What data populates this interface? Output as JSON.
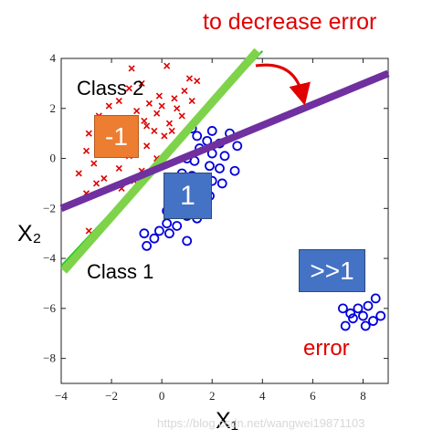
{
  "chart_data": {
    "type": "scatter",
    "title": "",
    "xlabel": "X₁",
    "ylabel": "X₂",
    "xlim": [
      -4,
      9
    ],
    "ylim": [
      -9,
      4
    ],
    "xticks": [
      "−4",
      "−2",
      "0",
      "2",
      "4",
      "6",
      "8"
    ],
    "xtick_values": [
      -4,
      -2,
      0,
      2,
      4,
      6,
      8
    ],
    "yticks": [
      "4",
      "2",
      "0",
      "−2",
      "−4",
      "−6",
      "−8"
    ],
    "ytick_values": [
      4,
      2,
      0,
      -2,
      -4,
      -6,
      -8
    ],
    "series": [
      {
        "marker": "x",
        "color": "#e00000",
        "points": [
          [
            -1.2,
            3.6
          ],
          [
            0.2,
            3.7
          ],
          [
            1.1,
            3.2
          ],
          [
            1.4,
            3.1
          ],
          [
            -0.8,
            3.0
          ],
          [
            -1.3,
            2.8
          ],
          [
            0.9,
            2.7
          ],
          [
            -0.1,
            2.5
          ],
          [
            0.5,
            2.4
          ],
          [
            -0.5,
            2.2
          ],
          [
            0.0,
            2.1
          ],
          [
            1.2,
            2.3
          ],
          [
            -1.7,
            2.3
          ],
          [
            -2.1,
            2.1
          ],
          [
            0.6,
            2.0
          ],
          [
            -1.0,
            1.9
          ],
          [
            -0.2,
            1.8
          ],
          [
            0.8,
            1.7
          ],
          [
            -2.5,
            1.7
          ],
          [
            -0.7,
            1.5
          ],
          [
            0.3,
            1.4
          ],
          [
            -1.5,
            1.3
          ],
          [
            -2.0,
            1.2
          ],
          [
            -0.3,
            1.1
          ],
          [
            -2.9,
            1.0
          ],
          [
            0.1,
            0.9
          ],
          [
            -1.1,
            0.8
          ],
          [
            -1.8,
            0.7
          ],
          [
            -0.6,
            0.5
          ],
          [
            -3.0,
            0.3
          ],
          [
            -2.2,
            0.2
          ],
          [
            -1.3,
            0.1
          ],
          [
            -0.2,
            0.0
          ],
          [
            -2.7,
            -0.2
          ],
          [
            -1.7,
            -0.4
          ],
          [
            -0.8,
            -0.5
          ],
          [
            -3.3,
            -0.6
          ],
          [
            -2.3,
            -0.8
          ],
          [
            -1.1,
            -0.9
          ],
          [
            -2.6,
            -1.0
          ],
          [
            -1.6,
            -1.2
          ],
          [
            -3.0,
            -1.4
          ],
          [
            -0.6,
            1.3
          ],
          [
            0.4,
            1.1
          ],
          [
            -1.4,
            1.6
          ],
          [
            -2.9,
            -2.9
          ]
        ]
      },
      {
        "marker": "o",
        "color": "#0000dd",
        "points": [
          [
            1.2,
            1.2
          ],
          [
            2.0,
            1.1
          ],
          [
            2.7,
            1.0
          ],
          [
            1.4,
            0.9
          ],
          [
            1.8,
            0.7
          ],
          [
            2.3,
            0.6
          ],
          [
            3.0,
            0.5
          ],
          [
            1.5,
            0.4
          ],
          [
            2.0,
            0.2
          ],
          [
            2.5,
            0.1
          ],
          [
            1.0,
            0.0
          ],
          [
            1.3,
            -0.1
          ],
          [
            1.9,
            -0.3
          ],
          [
            2.3,
            -0.4
          ],
          [
            2.9,
            -0.5
          ],
          [
            0.8,
            -0.6
          ],
          [
            1.2,
            -0.7
          ],
          [
            1.6,
            -0.8
          ],
          [
            2.0,
            -0.9
          ],
          [
            2.4,
            -1.0
          ],
          [
            0.7,
            -1.0
          ],
          [
            1.1,
            -1.2
          ],
          [
            1.5,
            -1.4
          ],
          [
            1.9,
            -1.5
          ],
          [
            0.4,
            -1.6
          ],
          [
            0.8,
            -1.7
          ],
          [
            1.2,
            -1.9
          ],
          [
            1.6,
            -2.0
          ],
          [
            0.2,
            -2.1
          ],
          [
            0.6,
            -2.2
          ],
          [
            1.0,
            -2.3
          ],
          [
            1.4,
            -2.4
          ],
          [
            0.2,
            -2.6
          ],
          [
            0.6,
            -2.7
          ],
          [
            -0.1,
            -2.9
          ],
          [
            0.3,
            -3.0
          ],
          [
            -0.7,
            -3.0
          ],
          [
            -0.3,
            -3.2
          ],
          [
            -0.6,
            -3.5
          ],
          [
            1.0,
            -3.3
          ],
          [
            7.2,
            -6.0
          ],
          [
            7.5,
            -6.2
          ],
          [
            7.8,
            -6.0
          ],
          [
            8.2,
            -5.9
          ],
          [
            8.5,
            -5.6
          ],
          [
            7.6,
            -6.4
          ],
          [
            8.0,
            -6.3
          ],
          [
            8.4,
            -6.5
          ],
          [
            8.7,
            -6.3
          ],
          [
            7.3,
            -6.7
          ],
          [
            8.1,
            -6.7
          ]
        ]
      }
    ],
    "lines": [
      {
        "color": "#22cc22",
        "width": 2,
        "from": [
          -4,
          -4.3
        ],
        "to": [
          4,
          4.3
        ]
      },
      {
        "color": "#7ed34a",
        "width": 9,
        "from": [
          -3.9,
          -4.5
        ],
        "to": [
          3.8,
          4.3
        ]
      },
      {
        "color": "#c040c0",
        "width": 2,
        "from": [
          -4,
          -2.1
        ],
        "to": [
          9,
          3.3
        ]
      },
      {
        "color": "#7030a0",
        "width": 8,
        "from": [
          -4,
          -2.0
        ],
        "to": [
          9,
          3.4
        ]
      }
    ],
    "annotations": {
      "to_decrease_error": "to decrease error",
      "class2": "Class 2",
      "class1": "Class 1",
      "box_minus1": "-1",
      "box_1": "1",
      "box_much_greater_1": ">>1",
      "error": "error"
    },
    "arrow_color": "#e00000",
    "box_colors": {
      "minus1": "#ed7d31",
      "one": "#4472c4",
      "much_greater": "#4472c4"
    }
  },
  "watermark": "https://blog.csdn.net/wangwei19871103"
}
